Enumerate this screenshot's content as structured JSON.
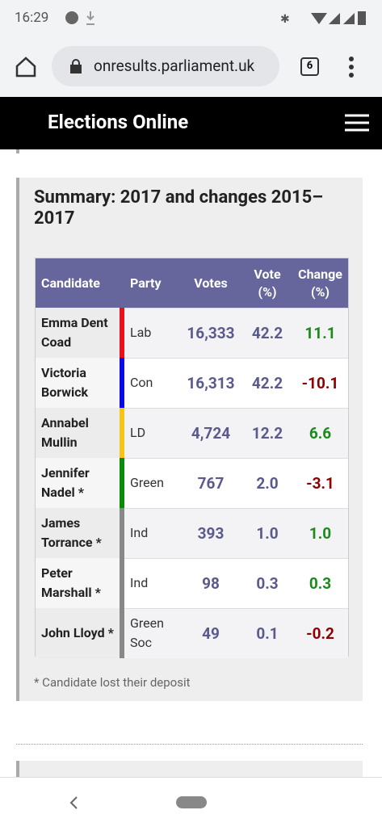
{
  "status_bar": {
    "time": "16:29"
  },
  "browser": {
    "url": "onresults.parliament.uk",
    "tab_count": "6"
  },
  "header": {
    "title": "Elections Online"
  },
  "summary": {
    "title": "Summary: 2017 and changes 2015–2017",
    "table": {
      "columns": [
        "Candidate",
        "Party",
        "Votes",
        "Vote (%)",
        "Change (%)"
      ],
      "rows": [
        {
          "candidate": "Emma Dent Coad",
          "party": "Lab",
          "party_color": "#e8101a",
          "votes": "16,333",
          "vote_pct": "42.2",
          "change": "11.1"
        },
        {
          "candidate": "Victoria Borwick",
          "party": "Con",
          "party_color": "#0a0ae6",
          "votes": "16,313",
          "vote_pct": "42.2",
          "change": "-10.1"
        },
        {
          "candidate": "Annabel Mullin",
          "party": "LD",
          "party_color": "#f5c518",
          "votes": "4,724",
          "vote_pct": "12.2",
          "change": "6.6"
        },
        {
          "candidate": "Jennifer Nadel *",
          "party": "Green",
          "party_color": "#0a8a0a",
          "votes": "767",
          "vote_pct": "2.0",
          "change": "-3.1"
        },
        {
          "candidate": "James Torrance *",
          "party": "Ind",
          "party_color": "#888888",
          "votes": "393",
          "vote_pct": "1.0",
          "change": "1.0"
        },
        {
          "candidate": "Peter Marshall *",
          "party": "Ind",
          "party_color": "#888888",
          "votes": "98",
          "vote_pct": "0.3",
          "change": "0.3"
        },
        {
          "candidate": "John Lloyd *",
          "party": "Green Soc",
          "party_color": "#888888",
          "votes": "49",
          "vote_pct": "0.1",
          "change": "-0.2"
        }
      ]
    },
    "footnote": "* Candidate lost their deposit"
  }
}
